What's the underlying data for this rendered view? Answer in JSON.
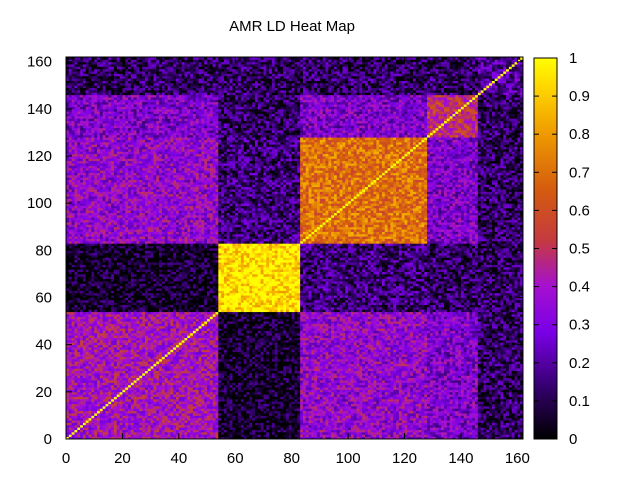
{
  "chart_data": {
    "type": "heatmap",
    "title": "AMR LD Heat Map",
    "xlabel": "",
    "ylabel": "",
    "xlim": [
      0,
      162
    ],
    "ylim": [
      0,
      162
    ],
    "xticks": [
      0,
      20,
      40,
      60,
      80,
      100,
      120,
      140,
      160
    ],
    "yticks": [
      0,
      20,
      40,
      60,
      80,
      100,
      120,
      140,
      160
    ],
    "xtick_labels": [
      "0",
      "20",
      "40",
      "60",
      "80",
      "100",
      "120",
      "140",
      "160"
    ],
    "ytick_labels": [
      "0",
      "20",
      "40",
      "60",
      "80",
      "100",
      "120",
      "140",
      "160"
    ],
    "grid": false,
    "colorbar": {
      "range": [
        0,
        1
      ],
      "ticks": [
        0,
        0.1,
        0.2,
        0.3,
        0.4,
        0.5,
        0.6,
        0.7,
        0.8,
        0.9,
        1
      ],
      "tick_labels": [
        "0",
        "0.1",
        "0.2",
        "0.3",
        "0.4",
        "0.5",
        "0.6",
        "0.7",
        "0.8",
        "0.9",
        "1"
      ],
      "placement": "right",
      "colormap": "black-purple-red-orange-yellow"
    },
    "blocks": [
      {
        "x": [
          0,
          53
        ],
        "y": [
          0,
          53
        ],
        "mean_value": 0.4
      },
      {
        "x": [
          54,
          82
        ],
        "y": [
          54,
          82
        ],
        "mean_value": 0.95
      },
      {
        "x": [
          83,
          127
        ],
        "y": [
          83,
          127
        ],
        "mean_value": 0.7
      },
      {
        "x": [
          128,
          145
        ],
        "y": [
          128,
          145
        ],
        "mean_value": 0.5
      },
      {
        "x": [
          146,
          162
        ],
        "y": [
          146,
          162
        ],
        "mean_value": 0.2
      }
    ],
    "off_diagonal_means": [
      {
        "between": [
          "0-53",
          "54-82"
        ],
        "mean_value": 0.05
      },
      {
        "between": [
          "54-82",
          "83-127"
        ],
        "mean_value": 0.15
      },
      {
        "between": [
          "0-53",
          "83-127"
        ],
        "mean_value": 0.35
      },
      {
        "between": [
          "83-127",
          "128-145"
        ],
        "mean_value": 0.3
      },
      {
        "between": [
          "any",
          "146-162"
        ],
        "mean_value": 0.12
      }
    ],
    "diagonal_value": 1
  }
}
